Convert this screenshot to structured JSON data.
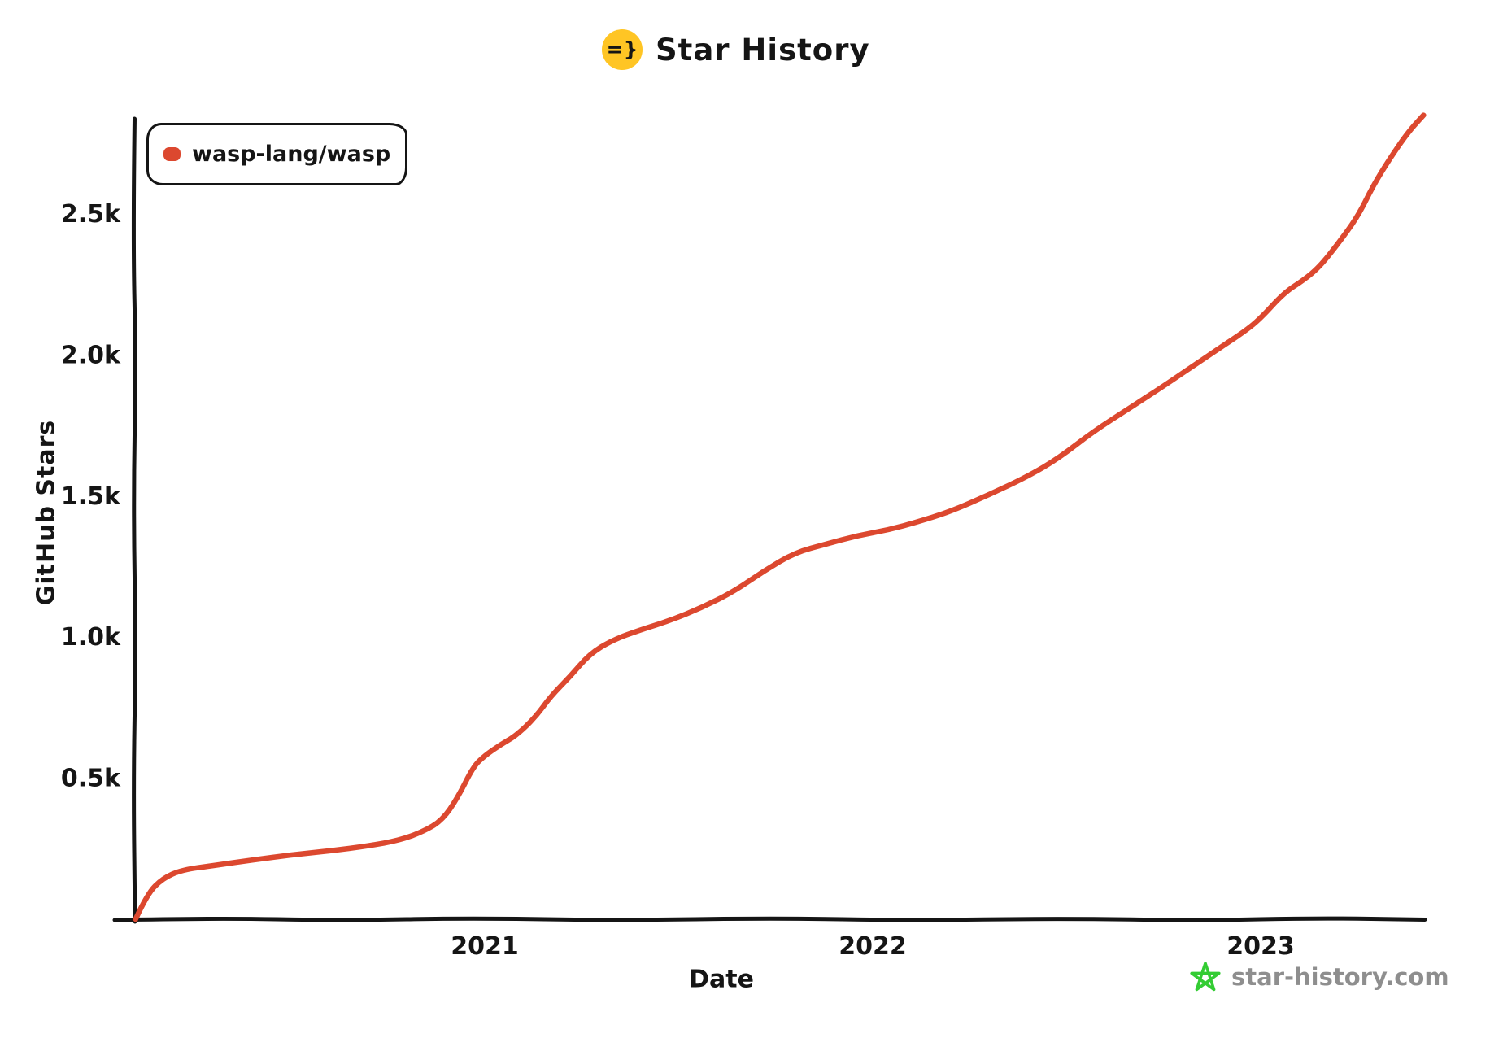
{
  "header": {
    "logo_text": "=}",
    "logo_bg_color": "#FFC524",
    "title": "Star History"
  },
  "legend": {
    "items": [
      {
        "label": "wasp-lang/wasp",
        "color": "#DC482F"
      }
    ]
  },
  "footer": {
    "watermark_text": "star-history.com",
    "text_color": "#8E8E8E",
    "star_color": "#33CC33"
  },
  "chart_data": {
    "type": "line",
    "title": "Star History",
    "xlabel": "Date",
    "ylabel": "GitHub Stars",
    "grid": false,
    "legend_position": "top-left",
    "axis_color": "#151515",
    "x_range": [
      2020.08,
      2023.46
    ],
    "y_range": [
      0,
      2900
    ],
    "x_ticks": [
      {
        "value": 2021,
        "label": "2021"
      },
      {
        "value": 2022,
        "label": "2022"
      },
      {
        "value": 2023,
        "label": "2023"
      }
    ],
    "y_ticks": [
      {
        "value": 500,
        "label": "0.5k"
      },
      {
        "value": 1000,
        "label": "1.0k"
      },
      {
        "value": 1500,
        "label": "1.5k"
      },
      {
        "value": 2000,
        "label": "2.0k"
      },
      {
        "value": 2500,
        "label": "2.5k"
      }
    ],
    "series": [
      {
        "name": "wasp-lang/wasp",
        "color": "#DC482F",
        "x_unit": "year",
        "y_unit": "stars",
        "points": [
          [
            2020.1,
            0
          ],
          [
            2020.13,
            90
          ],
          [
            2020.17,
            145
          ],
          [
            2020.22,
            175
          ],
          [
            2020.3,
            190
          ],
          [
            2020.4,
            210
          ],
          [
            2020.5,
            228
          ],
          [
            2020.6,
            242
          ],
          [
            2020.7,
            260
          ],
          [
            2020.78,
            280
          ],
          [
            2020.84,
            310
          ],
          [
            2020.89,
            350
          ],
          [
            2020.93,
            430
          ],
          [
            2020.97,
            540
          ],
          [
            2021.0,
            580
          ],
          [
            2021.04,
            618
          ],
          [
            2021.08,
            650
          ],
          [
            2021.13,
            715
          ],
          [
            2021.17,
            790
          ],
          [
            2021.22,
            860
          ],
          [
            2021.27,
            940
          ],
          [
            2021.33,
            990
          ],
          [
            2021.4,
            1025
          ],
          [
            2021.48,
            1060
          ],
          [
            2021.56,
            1105
          ],
          [
            2021.64,
            1160
          ],
          [
            2021.72,
            1235
          ],
          [
            2021.8,
            1300
          ],
          [
            2021.88,
            1330
          ],
          [
            2021.96,
            1360
          ],
          [
            2022.04,
            1380
          ],
          [
            2022.12,
            1410
          ],
          [
            2022.2,
            1445
          ],
          [
            2022.3,
            1505
          ],
          [
            2022.4,
            1570
          ],
          [
            2022.48,
            1635
          ],
          [
            2022.57,
            1730
          ],
          [
            2022.66,
            1810
          ],
          [
            2022.75,
            1890
          ],
          [
            2022.83,
            1965
          ],
          [
            2022.9,
            2030
          ],
          [
            2022.96,
            2085
          ],
          [
            2023.0,
            2130
          ],
          [
            2023.06,
            2220
          ],
          [
            2023.11,
            2265
          ],
          [
            2023.15,
            2310
          ],
          [
            2023.2,
            2395
          ],
          [
            2023.25,
            2490
          ],
          [
            2023.29,
            2600
          ],
          [
            2023.33,
            2690
          ],
          [
            2023.38,
            2790
          ],
          [
            2023.42,
            2850
          ]
        ]
      }
    ]
  }
}
